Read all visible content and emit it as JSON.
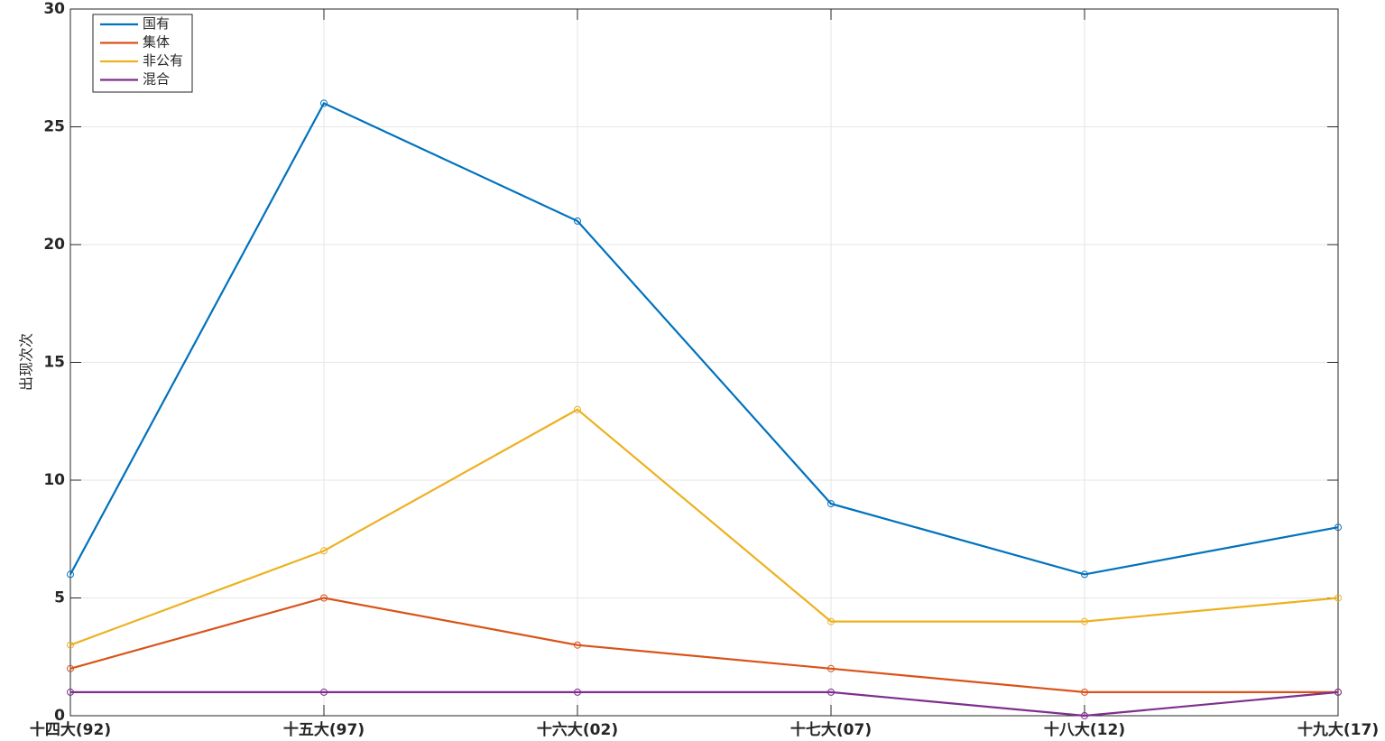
{
  "chart_data": {
    "type": "line",
    "y_label": "出现次次",
    "categories": [
      "十四大(92)",
      "十五大(97)",
      "十六大(02)",
      "十七大(07)",
      "十八大(12)",
      "十九大(17)"
    ],
    "series": [
      {
        "name": "国有",
        "color": "#0072BD",
        "values": [
          6,
          26,
          21,
          9,
          6,
          8
        ]
      },
      {
        "name": "集体",
        "color": "#D95319",
        "values": [
          2,
          5,
          3,
          2,
          1,
          1
        ]
      },
      {
        "name": "非公有",
        "color": "#EDB120",
        "values": [
          3,
          7,
          13,
          4,
          4,
          5
        ]
      },
      {
        "name": "混合",
        "color": "#7E2F8E",
        "values": [
          1,
          1,
          1,
          1,
          0,
          1
        ]
      }
    ],
    "ylim": [
      0,
      30
    ],
    "yticks": [
      0,
      5,
      10,
      15,
      20,
      25,
      30
    ],
    "grid": true,
    "legend_position": "upper-left"
  }
}
